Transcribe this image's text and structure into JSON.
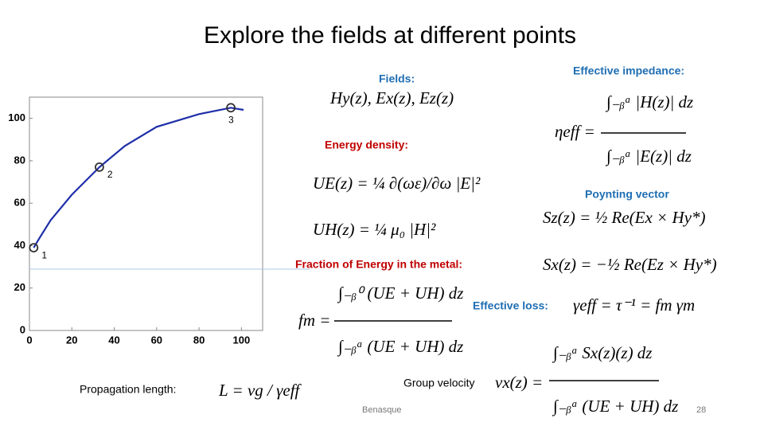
{
  "title": "Explore the fields at different points",
  "chart_data": {
    "type": "line",
    "x": [
      2,
      5,
      10,
      20,
      33,
      45,
      60,
      80,
      95,
      101
    ],
    "series": [
      {
        "color": "#1f2fa8",
        "values": [
          39,
          44,
          52,
          64,
          77,
          87,
          96,
          102,
          105,
          104
        ]
      }
    ],
    "points": [
      {
        "label": "1",
        "x": 2,
        "y": 39
      },
      {
        "label": "2",
        "x": 33,
        "y": 77
      },
      {
        "label": "3",
        "x": 95,
        "y": 105
      }
    ],
    "xlim": [
      0,
      110
    ],
    "ylim": [
      0,
      110
    ],
    "xticks": [
      0,
      20,
      40,
      60,
      80,
      100
    ],
    "yticks": [
      0,
      20,
      40,
      60,
      80,
      100
    ]
  },
  "fields": {
    "label": "Fields:",
    "equation": "Hy(z),  Ex(z),  Ez(z)"
  },
  "impedance": {
    "label": "Effective impedance:",
    "lhs": "ηeff =",
    "numerator": "∫₋ᵦᵃ |H(z)| dz",
    "denominator": "∫₋ᵦᵃ |E(z)| dz"
  },
  "energy": {
    "label": "Energy density:",
    "ue": "UE(z) = ¼ ∂(ωε)/∂ω |E|²",
    "uh": "UH(z) = ¼ μ₀ |H|²"
  },
  "poynting": {
    "label": "Poynting vector",
    "sz": "Sz(z) = ½ Re(Ex × Hy*)",
    "sx": "Sx(z) = −½ Re(Ez × Hy*)"
  },
  "fraction": {
    "label": "Fraction of Energy in the metal:",
    "lhs": "fm =",
    "numerator": "∫₋ᵦ⁰ (UE + UH) dz",
    "denominator": "∫₋ᵦᵃ (UE + UH) dz"
  },
  "loss": {
    "label": "Effective loss:",
    "equation": "γeff = τ⁻¹ = fm γm"
  },
  "propagation": {
    "label": "Propagation length:",
    "equation": "L = vg / γeff"
  },
  "group": {
    "label": "Group velocity",
    "lhs": "vx(z) =",
    "numerator": "∫₋ᵦᵃ Sx(z)(z) dz",
    "denominator": "∫₋ᵦᵃ (UE + UH) dz"
  },
  "footer": {
    "left": "Benasque",
    "page": "28"
  }
}
